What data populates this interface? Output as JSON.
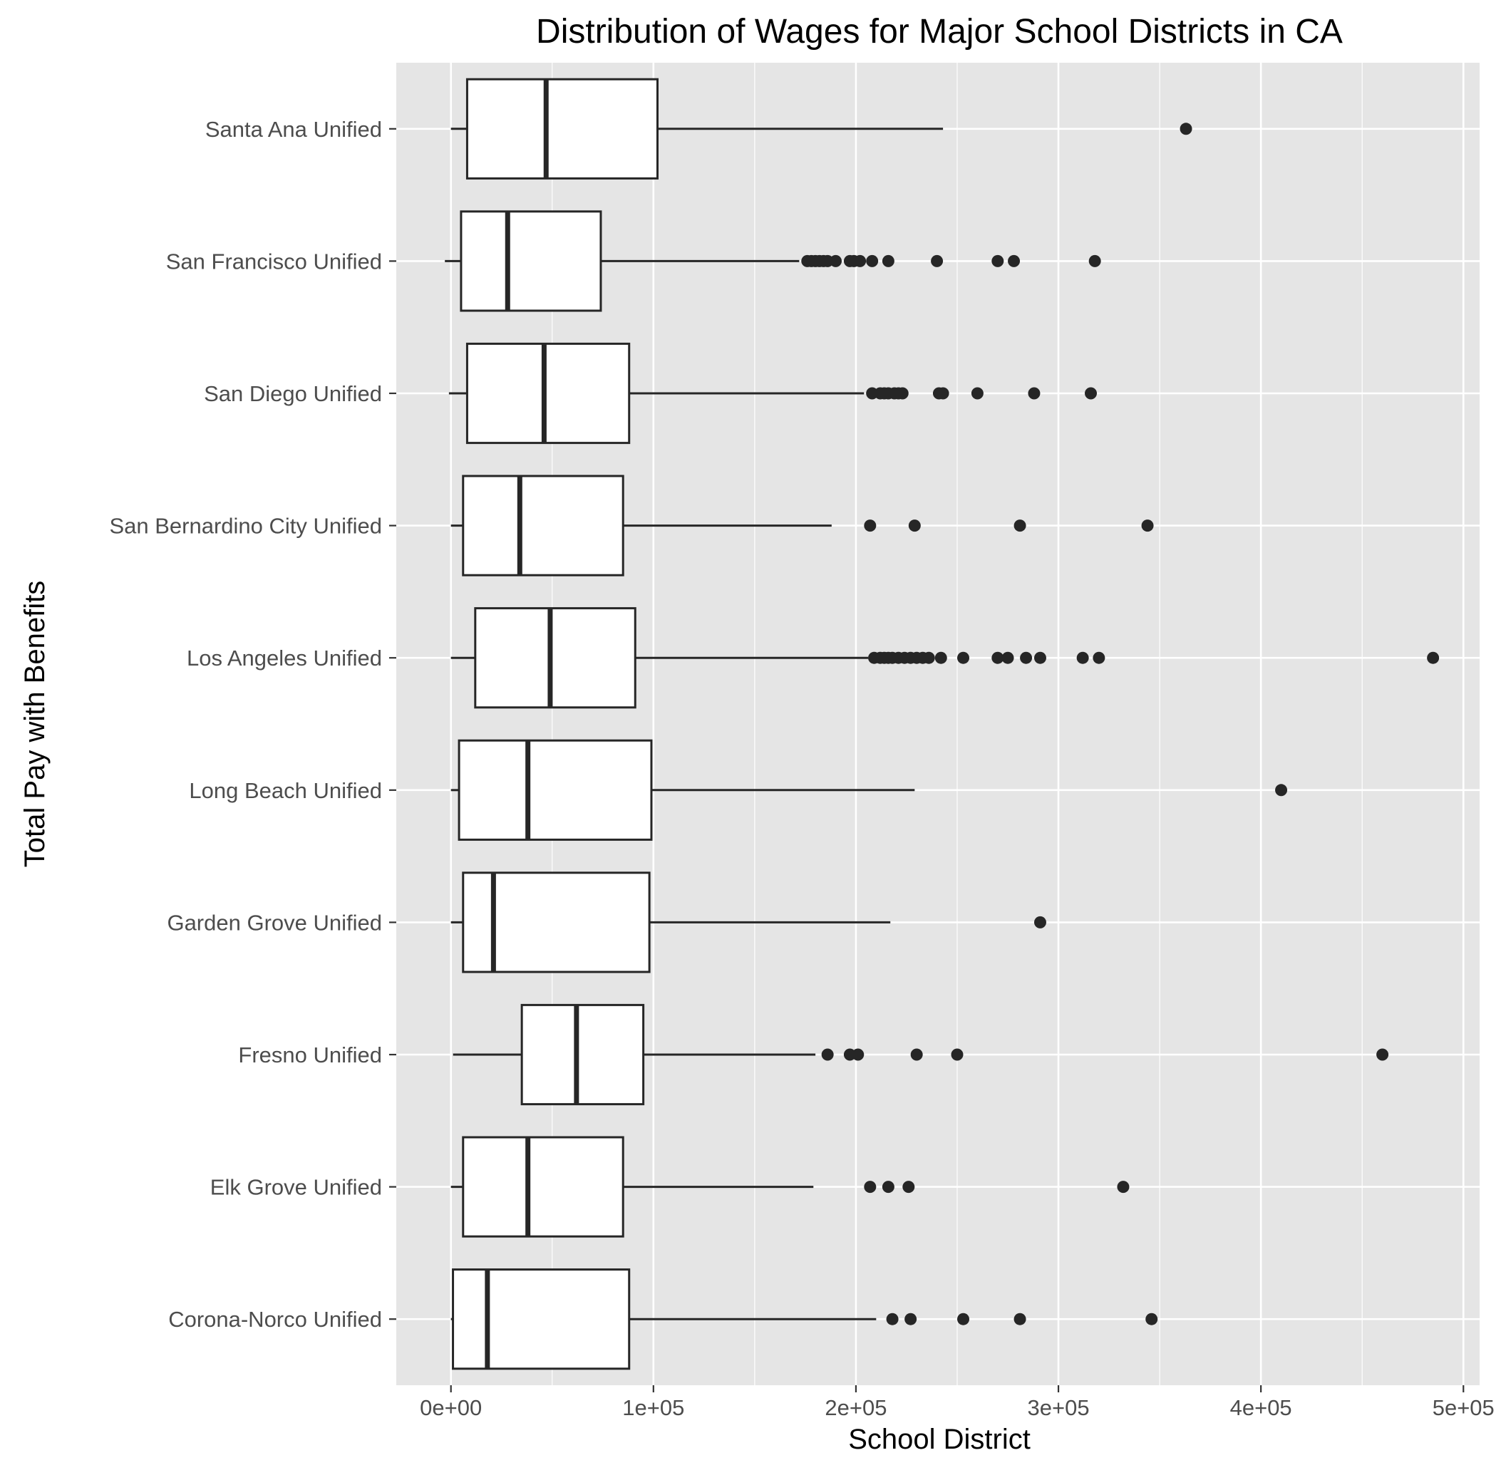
{
  "chart_data": {
    "type": "boxplot",
    "orientation": "horizontal",
    "title": "Distribution of Wages for Major School Districts in CA",
    "xlabel": "School District",
    "ylabel": "Total Pay with Benefits",
    "xlim": [
      -27000,
      508000
    ],
    "x_ticks": [
      0,
      100000,
      200000,
      300000,
      400000,
      500000
    ],
    "x_tick_labels": [
      "0e+00",
      "1e+05",
      "2e+05",
      "3e+05",
      "4e+05",
      "5e+05"
    ],
    "grid": true,
    "panel_background": "#e5e5e5",
    "grid_color": "#ffffff",
    "box_fill": "#ffffff",
    "line_color": "#262626",
    "categories": [
      "Santa Ana Unified",
      "San Francisco Unified",
      "San Diego Unified",
      "San Bernardino City Unified",
      "Los Angeles Unified",
      "Long Beach Unified",
      "Garden Grove Unified",
      "Fresno Unified",
      "Elk Grove Unified",
      "Corona-Norco Unified"
    ],
    "boxes": [
      {
        "category": "Santa Ana Unified",
        "min": 0,
        "q1": 8000,
        "median": 47000,
        "q3": 102000,
        "max": 243000,
        "outliers": [
          363000
        ]
      },
      {
        "category": "San Francisco Unified",
        "min": -3000,
        "q1": 5000,
        "median": 28000,
        "q3": 74000,
        "max": 172000,
        "outliers": [
          176000,
          178000,
          180000,
          182000,
          184000,
          186000,
          190000,
          197000,
          199000,
          202000,
          208000,
          216000,
          240000,
          270000,
          278000,
          318000
        ]
      },
      {
        "category": "San Diego Unified",
        "min": -1000,
        "q1": 8000,
        "median": 46000,
        "q3": 88000,
        "max": 204000,
        "outliers": [
          208000,
          212000,
          214000,
          216000,
          219000,
          221000,
          223000,
          241000,
          243000,
          260000,
          288000,
          316000
        ]
      },
      {
        "category": "San Bernardino City Unified",
        "min": 0,
        "q1": 6000,
        "median": 34000,
        "q3": 85000,
        "max": 188000,
        "outliers": [
          207000,
          229000,
          281000,
          344000
        ]
      },
      {
        "category": "Los Angeles Unified",
        "min": 0,
        "q1": 12000,
        "median": 49000,
        "q3": 91000,
        "max": 206000,
        "outliers": [
          209000,
          212000,
          214000,
          216000,
          218000,
          221000,
          224000,
          227000,
          230000,
          233000,
          236000,
          242000,
          253000,
          270000,
          275000,
          284000,
          291000,
          312000,
          320000,
          485000
        ]
      },
      {
        "category": "Long Beach Unified",
        "min": 0,
        "q1": 4000,
        "median": 38000,
        "q3": 99000,
        "max": 229000,
        "outliers": [
          410000
        ]
      },
      {
        "category": "Garden Grove Unified",
        "min": 0,
        "q1": 6000,
        "median": 21000,
        "q3": 98000,
        "max": 217000,
        "outliers": [
          291000
        ]
      },
      {
        "category": "Fresno Unified",
        "min": 1000,
        "q1": 35000,
        "median": 62000,
        "q3": 95000,
        "max": 180000,
        "outliers": [
          186000,
          197000,
          201000,
          230000,
          250000,
          460000
        ]
      },
      {
        "category": "Elk Grove Unified",
        "min": 0,
        "q1": 6000,
        "median": 38000,
        "q3": 85000,
        "max": 179000,
        "outliers": [
          207000,
          216000,
          226000,
          332000
        ]
      },
      {
        "category": "Corona-Norco Unified",
        "min": 0,
        "q1": 1000,
        "median": 18000,
        "q3": 88000,
        "max": 210000,
        "outliers": [
          218000,
          227000,
          253000,
          281000,
          346000
        ]
      }
    ]
  }
}
